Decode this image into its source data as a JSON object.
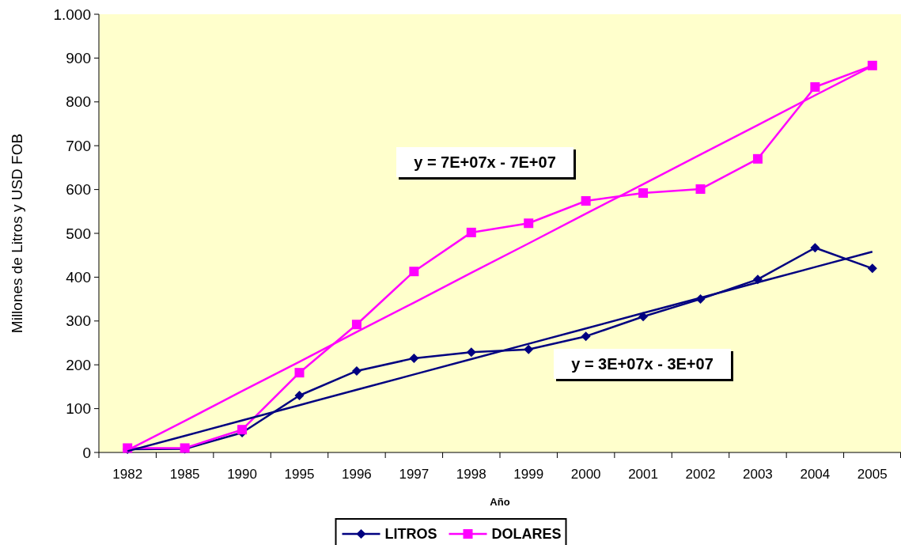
{
  "chart_data": {
    "type": "line",
    "xlabel": "Año",
    "ylabel": "Millones de Litros y USD FOB",
    "categories": [
      "1982",
      "1985",
      "1990",
      "1995",
      "1996",
      "1997",
      "1998",
      "1999",
      "2000",
      "2001",
      "2002",
      "2003",
      "2004",
      "2005"
    ],
    "series": [
      {
        "name": "LITROS",
        "color": "#000080",
        "marker": "diamond",
        "values": [
          7,
          8,
          45,
          130,
          186,
          215,
          229,
          235,
          265,
          310,
          350,
          395,
          467,
          420
        ]
      },
      {
        "name": "DOLARES",
        "color": "#ff00ff",
        "marker": "square",
        "values": [
          10,
          10,
          52,
          182,
          292,
          413,
          502,
          523,
          574,
          592,
          601,
          670,
          834,
          883
        ]
      },
      {
        "type": "line",
        "color": "#ff00ff",
        "marker": "none",
        "values": [
          5,
          72,
          140,
          207,
          275,
          342,
          410,
          477,
          545,
          612,
          680,
          747,
          815,
          882
        ]
      },
      {
        "type": "line",
        "color": "#000080",
        "marker": "none",
        "values": [
          3,
          38,
          73,
          108,
          143,
          178,
          213,
          248,
          283,
          318,
          353,
          388,
          423,
          458
        ]
      }
    ],
    "annotations": [
      "y = 7E+07x - 7E+07",
      "y = 3E+07x - 3E+07"
    ],
    "ylim": [
      0,
      1000
    ],
    "yticks": [
      0,
      100,
      200,
      300,
      400,
      500,
      600,
      700,
      800,
      900,
      {
        "value": 1000,
        "label": "1.000"
      }
    ],
    "grid": false,
    "legend": "bottom"
  }
}
